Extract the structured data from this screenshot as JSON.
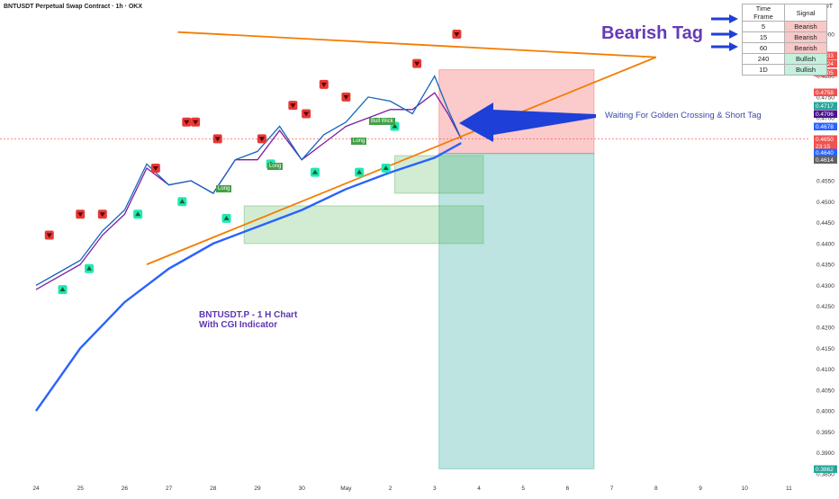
{
  "header": {
    "title": "BNTUSDT Perpetual Swap Contract · 1h · OKX",
    "currency": "USDT"
  },
  "colors": {
    "bull": "#26a69a",
    "bear": "#ef5350",
    "ma_blue": "#2962ff",
    "ma_purple": "#7b1fa2",
    "trend_orange": "#f57c00",
    "annotation_purple": "#673ab7",
    "arrow_blue": "#1e40d8"
  },
  "table": {
    "headers": [
      "Time Frame",
      "Signal"
    ],
    "rows": [
      {
        "tf": "5",
        "signal": "Bearish"
      },
      {
        "tf": "15",
        "signal": "Bearish"
      },
      {
        "tf": "60",
        "signal": "Bearish"
      },
      {
        "tf": "240",
        "signal": "Bullish"
      },
      {
        "tf": "1D",
        "signal": "Bullish"
      }
    ]
  },
  "annotations": {
    "bearish_tag": "Bearish Tag",
    "waiting": "Waiting For Golden Crossing & Short Tag",
    "chart_note_line1": "BNTUSDT.P - 1 H Chart",
    "chart_note_line2": "With CGI Indicator",
    "chart_labels": [
      "Long",
      "Long",
      "Bull Wick",
      "Long"
    ]
  },
  "chart_data": {
    "type": "line",
    "title": "BNTUSDT Perpetual Swap Contract · 1h · OKX",
    "y_axis_unit": "USDT",
    "ylim": [
      0.3845,
      0.4935
    ],
    "xlim": [
      "Apr 23",
      "May 11"
    ],
    "x_ticks": [
      "24",
      "25",
      "26",
      "27",
      "28",
      "29",
      "30",
      "May",
      "2",
      "3",
      "4",
      "5",
      "6",
      "7",
      "8",
      "9",
      "10",
      "11"
    ],
    "y_ticks": [
      "0.4900",
      "0.4850",
      "0.4800",
      "0.4750",
      "0.4700",
      "0.4650",
      "0.4600",
      "0.4550",
      "0.4500",
      "0.4450",
      "0.4400",
      "0.4350",
      "0.4300",
      "0.4250",
      "0.4200",
      "0.4150",
      "0.4100",
      "0.4050",
      "0.4000",
      "0.3950",
      "0.3900",
      "0.3850"
    ],
    "price_labels": [
      {
        "text": "0.4833",
        "color": "#ef5350"
      },
      {
        "text": "0.4824",
        "color": "#ef5350"
      },
      {
        "text": "0.4805",
        "color": "#ef5350"
      },
      {
        "text": "0.4758",
        "color": "#ef5350"
      },
      {
        "text": "0.4717",
        "color": "#26a69a"
      },
      {
        "text": "0.4706",
        "color": "#4a148c"
      },
      {
        "text": "0.4678",
        "color": "#2962ff"
      },
      {
        "text": "0.4650",
        "color": "#ef5350"
      },
      {
        "text": "23:15",
        "color": "#ef5350"
      },
      {
        "text": "0.4640",
        "color": "#2962ff"
      },
      {
        "text": "0.4614",
        "color": "#616161"
      },
      {
        "text": "0.3862",
        "color": "#26a69a"
      }
    ],
    "series": [
      {
        "name": "",
        "color": "#2962ff",
        "points": [
          [
            0,
            0.4
          ],
          [
            1,
            0.415
          ],
          [
            2,
            0.426
          ],
          [
            3,
            0.434
          ],
          [
            4,
            0.44
          ],
          [
            5,
            0.444
          ],
          [
            6,
            0.448
          ],
          [
            7,
            0.453
          ],
          [
            8,
            0.457
          ],
          [
            9,
            0.4605
          ],
          [
            9.6,
            0.464
          ]
        ]
      },
      {
        "name": "",
        "color": "#7b1fa2",
        "points": [
          [
            0,
            0.429
          ],
          [
            0.5,
            0.432
          ],
          [
            1,
            0.435
          ],
          [
            1.5,
            0.442
          ],
          [
            2,
            0.447
          ],
          [
            2.5,
            0.458
          ],
          [
            3,
            0.454
          ],
          [
            3.5,
            0.455
          ],
          [
            4,
            0.452
          ],
          [
            4.5,
            0.46
          ],
          [
            5,
            0.46
          ],
          [
            5.5,
            0.467
          ],
          [
            6,
            0.46
          ],
          [
            6.5,
            0.464
          ],
          [
            7,
            0.468
          ],
          [
            7.5,
            0.47
          ],
          [
            8,
            0.472
          ],
          [
            8.5,
            0.472
          ],
          [
            9,
            0.476
          ],
          [
            9.3,
            0.471
          ],
          [
            9.6,
            0.465
          ]
        ]
      },
      {
        "name": "",
        "color": "#1565c0",
        "points": [
          [
            0,
            0.43
          ],
          [
            0.5,
            0.433
          ],
          [
            1,
            0.436
          ],
          [
            1.5,
            0.443
          ],
          [
            2,
            0.448
          ],
          [
            2.5,
            0.459
          ],
          [
            3,
            0.454
          ],
          [
            3.5,
            0.455
          ],
          [
            4,
            0.452
          ],
          [
            4.5,
            0.46
          ],
          [
            5,
            0.462
          ],
          [
            5.5,
            0.468
          ],
          [
            6,
            0.46
          ],
          [
            6.5,
            0.466
          ],
          [
            7,
            0.469
          ],
          [
            7.5,
            0.475
          ],
          [
            8,
            0.474
          ],
          [
            8.5,
            0.471
          ],
          [
            9,
            0.48
          ],
          [
            9.3,
            0.472
          ],
          [
            9.6,
            0.465
          ]
        ]
      }
    ],
    "trendlines": [
      {
        "name": "",
        "color": "#f57c00",
        "from": [
          3.2,
          0.4905
        ],
        "to": [
          14,
          0.4845
        ]
      },
      {
        "name": "",
        "color": "#f57c00",
        "from": [
          2.5,
          0.435
        ],
        "to": [
          14,
          0.4845
        ]
      }
    ],
    "zones": [
      {
        "name": "",
        "color": "#ef5350",
        "from": [
          9.1,
          0.4815
        ],
        "to": [
          12.6,
          0.4615
        ],
        "opacity": 0.3
      },
      {
        "name": "",
        "color": "#26a69a",
        "from": [
          9.1,
          0.4615
        ],
        "to": [
          12.6,
          0.3862
        ],
        "opacity": 0.3
      },
      {
        "name": "",
        "color": "#4caf50",
        "from": [
          8.1,
          0.461
        ],
        "to": [
          10.1,
          0.452
        ],
        "opacity": 0.25
      },
      {
        "name": "",
        "color": "#4caf50",
        "from": [
          4.7,
          0.449
        ],
        "to": [
          10.1,
          0.44
        ],
        "opacity": 0.25
      }
    ],
    "buy_signals": [
      [
        0.6,
        0.429
      ],
      [
        1.2,
        0.434
      ],
      [
        2.3,
        0.447
      ],
      [
        3.3,
        0.45
      ],
      [
        4.3,
        0.446
      ],
      [
        5.3,
        0.459
      ],
      [
        6.3,
        0.457
      ],
      [
        7.3,
        0.457
      ],
      [
        7.9,
        0.458
      ],
      [
        8.1,
        0.468
      ]
    ],
    "sell_signals": [
      [
        0.3,
        0.442
      ],
      [
        1.0,
        0.447
      ],
      [
        1.5,
        0.447
      ],
      [
        2.7,
        0.458
      ],
      [
        3.4,
        0.469
      ],
      [
        3.6,
        0.469
      ],
      [
        4.1,
        0.465
      ],
      [
        5.1,
        0.465
      ],
      [
        5.8,
        0.473
      ],
      [
        6.1,
        0.471
      ],
      [
        6.5,
        0.478
      ],
      [
        7.0,
        0.475
      ],
      [
        8.6,
        0.483
      ],
      [
        9.5,
        0.49
      ]
    ],
    "grid": false,
    "legend": "none"
  }
}
